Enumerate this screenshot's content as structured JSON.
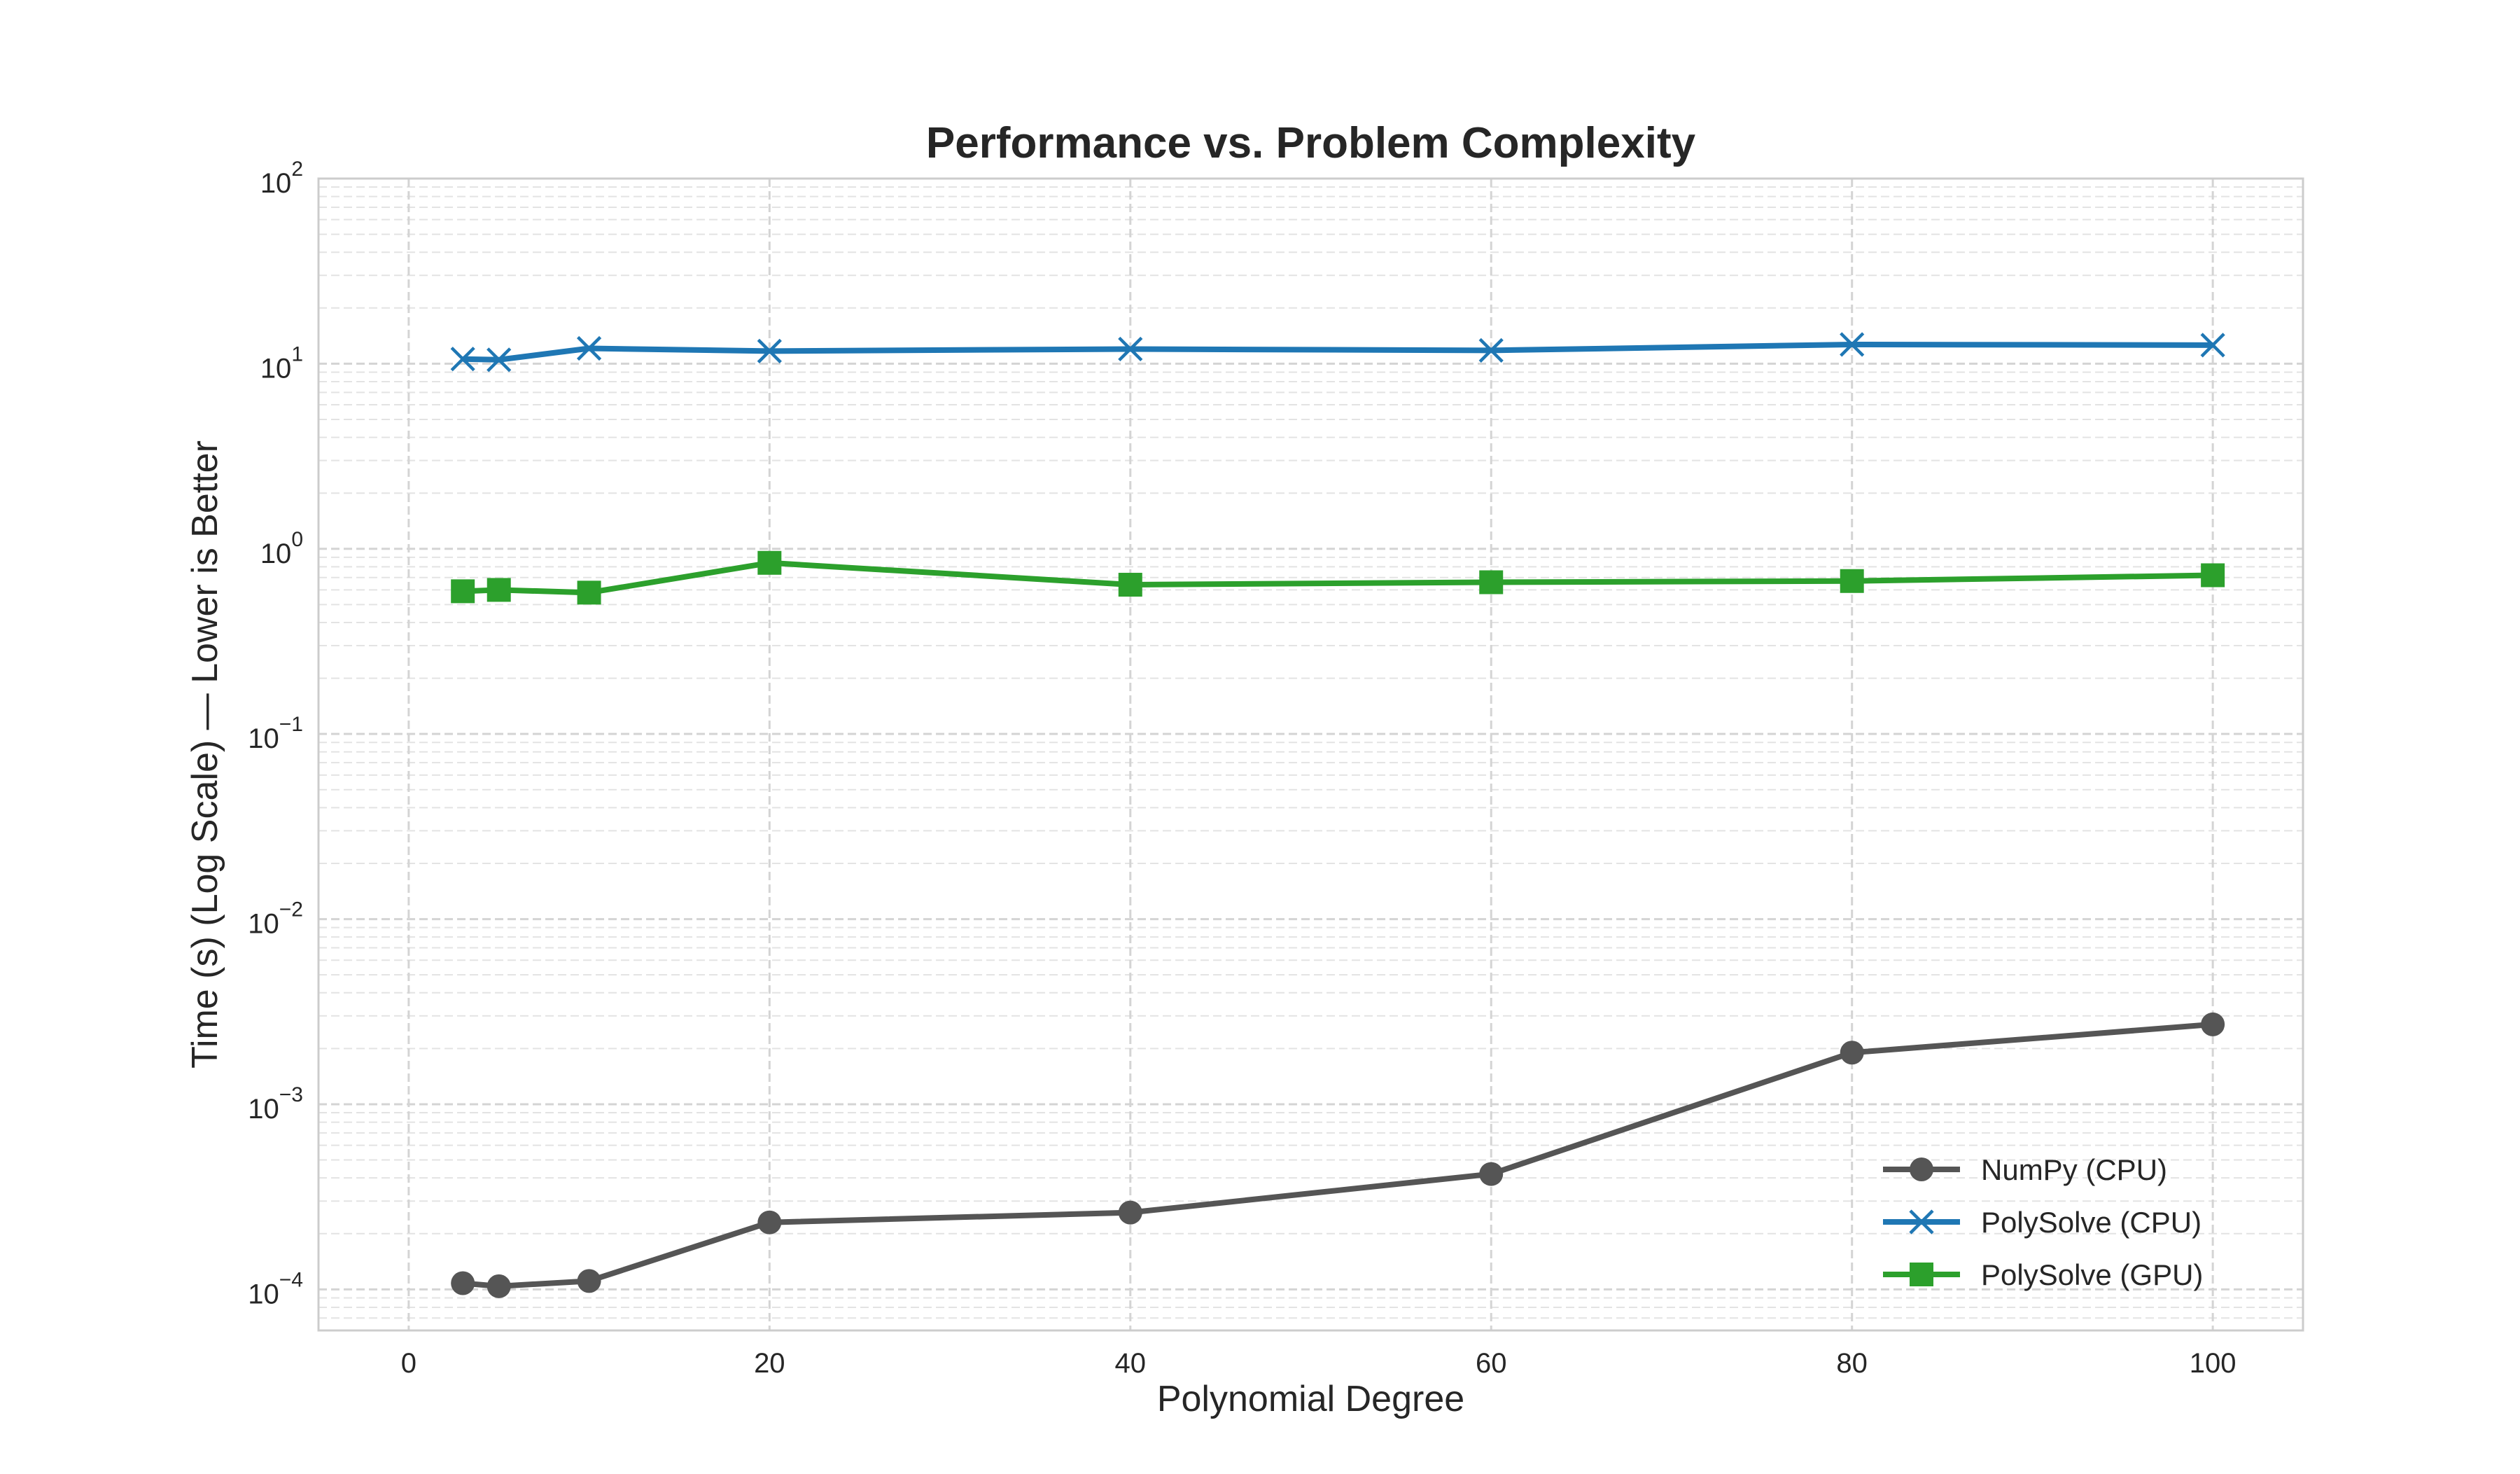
{
  "chart_data": {
    "type": "line",
    "title": "Performance vs. Problem Complexity",
    "xlabel": "Polynomial Degree",
    "ylabel": "Time (s) (Log Scale) — Lower is Better",
    "xlim": [
      -5,
      105
    ],
    "ylim": [
      6e-05,
      100
    ],
    "yscale": "log",
    "x_ticks": [
      0,
      20,
      40,
      60,
      80,
      100
    ],
    "y_ticks": [
      {
        "value": 0.0001,
        "base": "10",
        "exp": "−4"
      },
      {
        "value": 0.001,
        "base": "10",
        "exp": "−3"
      },
      {
        "value": 0.01,
        "base": "10",
        "exp": "−2"
      },
      {
        "value": 0.1,
        "base": "10",
        "exp": "−1"
      },
      {
        "value": 1,
        "base": "10",
        "exp": "0"
      },
      {
        "value": 10,
        "base": "10",
        "exp": "1"
      },
      {
        "value": 100,
        "base": "10",
        "exp": "2"
      }
    ],
    "grid": true,
    "legend_position": "bottom-right",
    "x": [
      3,
      5,
      10,
      20,
      40,
      60,
      80,
      100
    ],
    "series": [
      {
        "name": "NumPy (CPU)",
        "color": "#555555",
        "marker": "circle",
        "values": [
          0.000108,
          0.000104,
          0.000111,
          0.00023,
          0.00026,
          0.00042,
          0.0019,
          0.0027
        ]
      },
      {
        "name": "PolySolve (CPU)",
        "color": "#1f77b4",
        "marker": "x",
        "values": [
          10.6,
          10.5,
          12.1,
          11.7,
          12.0,
          11.8,
          12.7,
          12.6
        ]
      },
      {
        "name": "PolySolve (GPU)",
        "color": "#2ca02c",
        "marker": "square",
        "values": [
          0.59,
          0.6,
          0.58,
          0.84,
          0.64,
          0.66,
          0.67,
          0.72
        ]
      }
    ]
  }
}
